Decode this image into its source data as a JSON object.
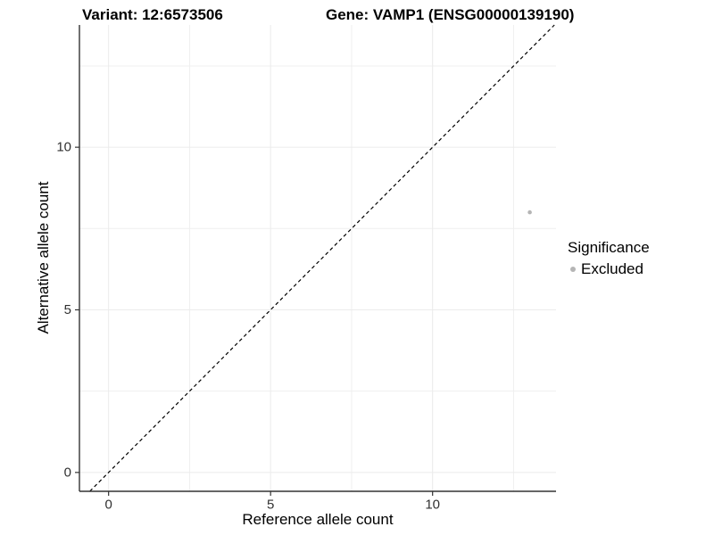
{
  "titles": {
    "variant": "Variant: 12:6573506",
    "gene": "Gene: VAMP1 (ENSG00000139190)"
  },
  "chart_data": {
    "type": "scatter",
    "xlabel": "Reference allele count",
    "ylabel": "Alternative allele count",
    "xlim": [
      -0.9,
      13.81
    ],
    "ylim": [
      -0.58,
      13.76
    ],
    "x_ticks": [
      0,
      5,
      10
    ],
    "y_ticks": [
      0,
      5,
      10
    ],
    "minor_breaks": [
      2.5,
      7.5,
      12.5
    ],
    "grid": true,
    "identity_line": {
      "type": "dashed",
      "color": "#000000",
      "slope": 1,
      "intercept": 0
    },
    "series": [
      {
        "name": "Excluded",
        "color": "#b5b5b5",
        "points": [
          {
            "x": 13,
            "y": 8
          }
        ],
        "point_radius": 2.3
      }
    ],
    "legend": {
      "position": "right",
      "title": "Significance",
      "items": [
        {
          "label": "Excluded",
          "color": "#b5b5b5"
        }
      ]
    },
    "colors": {
      "axis_line": "#333333",
      "tick_label": "#303030",
      "grid_major": "#ebebeb",
      "grid_minor": "#efefef"
    }
  }
}
